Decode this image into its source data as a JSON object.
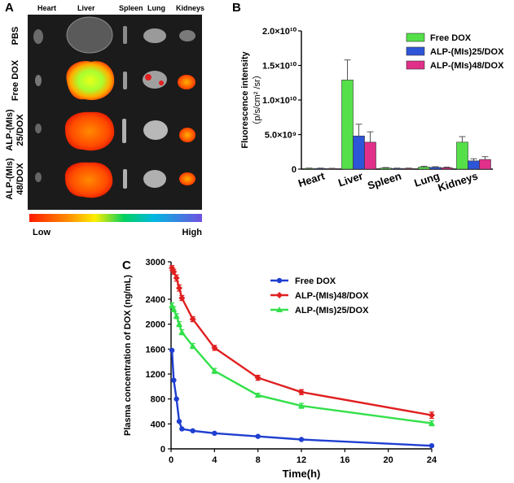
{
  "panel_labels": {
    "a": "A",
    "b": "B",
    "c": "C"
  },
  "panel_a": {
    "organs": [
      "Heart",
      "Liver",
      "Spleen",
      "Lung",
      "Kidneys"
    ],
    "groups": [
      "PBS",
      "Free DOX",
      "ALP-(MIs) 25/DOX",
      "ALP-(MIs) 48/DOX"
    ],
    "group_lines": [
      [
        "PBS"
      ],
      [
        "Free DOX"
      ],
      [
        "ALP-(MIs)",
        "25/DOX"
      ],
      [
        "ALP-(MIs)",
        "48/DOX"
      ]
    ],
    "colorbar_low": "Low",
    "colorbar_high": "High",
    "colors": {
      "background": "#1b1b1b",
      "bar_start": "#ff1a00",
      "bar_mid": "#00d060",
      "bar_end": "#7050e0"
    }
  },
  "chart_data": [
    {
      "type": "bar",
      "panel": "B",
      "categories": [
        "Heart",
        "Liver",
        "Spleen",
        "Lung",
        "Kidneys"
      ],
      "ylabel_lines": [
        "Fluorescence intensity",
        "（p/s/cm² /sr）"
      ],
      "ylim": [
        0,
        20000000000.0
      ],
      "yticks": [
        0,
        5000000000.0,
        10000000000.0,
        15000000000.0,
        20000000000.0
      ],
      "ytick_labels": [
        "0",
        "5.0×10⁹",
        "1.0×10¹⁰",
        "1.5×10¹⁰",
        "2.0×10¹⁰"
      ],
      "legend_position": "top-right",
      "series": [
        {
          "name": "Free DOX",
          "color": "#55e04a",
          "values": [
            100000000.0,
            12900000000.0,
            150000000.0,
            300000000.0,
            3900000000.0
          ],
          "errors": [
            50000000.0,
            2900000000.0,
            80000000.0,
            120000000.0,
            800000000.0
          ]
        },
        {
          "name": "ALP-(MIs)25/DOX",
          "color": "#2c55d8",
          "values": [
            100000000.0,
            4800000000.0,
            100000000.0,
            250000000.0,
            1200000000.0
          ],
          "errors": [
            50000000.0,
            1700000000.0,
            50000000.0,
            100000000.0,
            300000000.0
          ]
        },
        {
          "name": "ALP-(MIs)48/DOX",
          "color": "#e0308a",
          "values": [
            80000000.0,
            3900000000.0,
            100000000.0,
            200000000.0,
            1400000000.0
          ],
          "errors": [
            40000000.0,
            1500000000.0,
            50000000.0,
            100000000.0,
            400000000.0
          ]
        }
      ]
    },
    {
      "type": "line",
      "panel": "C",
      "xlabel": "Time(h)",
      "ylabel": "Plasma concentration of DOX (ng/mL)",
      "xlim": [
        0,
        24
      ],
      "ylim": [
        0,
        3000
      ],
      "xticks": [
        0,
        4,
        8,
        12,
        16,
        20,
        24
      ],
      "yticks": [
        0,
        400,
        800,
        1200,
        1600,
        2000,
        2400,
        3000
      ],
      "legend_position": "top-right",
      "series": [
        {
          "name": "Free DOX",
          "color": "#1f3fd1",
          "marker": "circle",
          "x": [
            0.083,
            0.25,
            0.5,
            0.75,
            1,
            2,
            4,
            8,
            12,
            24
          ],
          "y": [
            1580,
            1100,
            800,
            440,
            320,
            290,
            250,
            200,
            150,
            50
          ],
          "errors": [
            0,
            0,
            0,
            0,
            0,
            0,
            0,
            0,
            0,
            0
          ]
        },
        {
          "name": "ALP-(MIs)48/DOX",
          "color": "#e02020",
          "marker": "diamond",
          "x": [
            0.083,
            0.25,
            0.5,
            0.75,
            1,
            2,
            4,
            8,
            12,
            24
          ],
          "y": [
            2900,
            2840,
            2740,
            2580,
            2420,
            2080,
            1620,
            1140,
            910,
            540
          ],
          "errors": [
            40,
            40,
            50,
            50,
            40,
            40,
            40,
            40,
            40,
            50
          ]
        },
        {
          "name": "ALP-(MIs)25/DOX",
          "color": "#33e04a",
          "marker": "triangle",
          "x": [
            0.083,
            0.25,
            0.5,
            0.75,
            1,
            2,
            4,
            8,
            12,
            24
          ],
          "y": [
            2300,
            2240,
            2130,
            2000,
            1870,
            1650,
            1250,
            860,
            690,
            410
          ],
          "errors": [
            40,
            40,
            40,
            40,
            40,
            40,
            40,
            30,
            40,
            40
          ]
        }
      ]
    }
  ]
}
